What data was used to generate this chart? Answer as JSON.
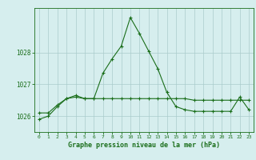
{
  "line1_x": [
    0,
    1,
    2,
    3,
    4,
    5,
    6,
    7,
    8,
    9,
    10,
    11,
    12,
    13,
    14,
    15,
    16,
    17,
    18,
    19,
    20,
    21,
    22,
    23
  ],
  "line1_y": [
    1025.9,
    1026.0,
    1026.3,
    1026.55,
    1026.6,
    1026.55,
    1026.55,
    1027.35,
    1027.8,
    1028.2,
    1029.1,
    1028.6,
    1028.05,
    1027.5,
    1026.75,
    1026.3,
    1026.2,
    1026.15,
    1026.15,
    1026.15,
    1026.15,
    1026.15,
    1026.6,
    1026.2
  ],
  "line2_x": [
    0,
    1,
    2,
    3,
    4,
    5,
    6,
    7,
    8,
    9,
    10,
    11,
    12,
    13,
    14,
    15,
    16,
    17,
    18,
    19,
    20,
    21,
    22,
    23
  ],
  "line2_y": [
    1026.1,
    1026.1,
    1026.35,
    1026.55,
    1026.65,
    1026.55,
    1026.55,
    1026.55,
    1026.55,
    1026.55,
    1026.55,
    1026.55,
    1026.55,
    1026.55,
    1026.55,
    1026.55,
    1026.55,
    1026.5,
    1026.5,
    1026.5,
    1026.5,
    1026.5,
    1026.5,
    1026.5
  ],
  "line_color": "#1a6e1a",
  "bg_color": "#d6eeee",
  "grid_color": "#aacccc",
  "xlabel": "Graphe pression niveau de la mer (hPa)",
  "yticks": [
    1026,
    1027,
    1028
  ],
  "xticks": [
    0,
    1,
    2,
    3,
    4,
    5,
    6,
    7,
    8,
    9,
    10,
    11,
    12,
    13,
    14,
    15,
    16,
    17,
    18,
    19,
    20,
    21,
    22,
    23
  ],
  "ylim": [
    1025.5,
    1029.4
  ],
  "xlim": [
    -0.5,
    23.5
  ]
}
